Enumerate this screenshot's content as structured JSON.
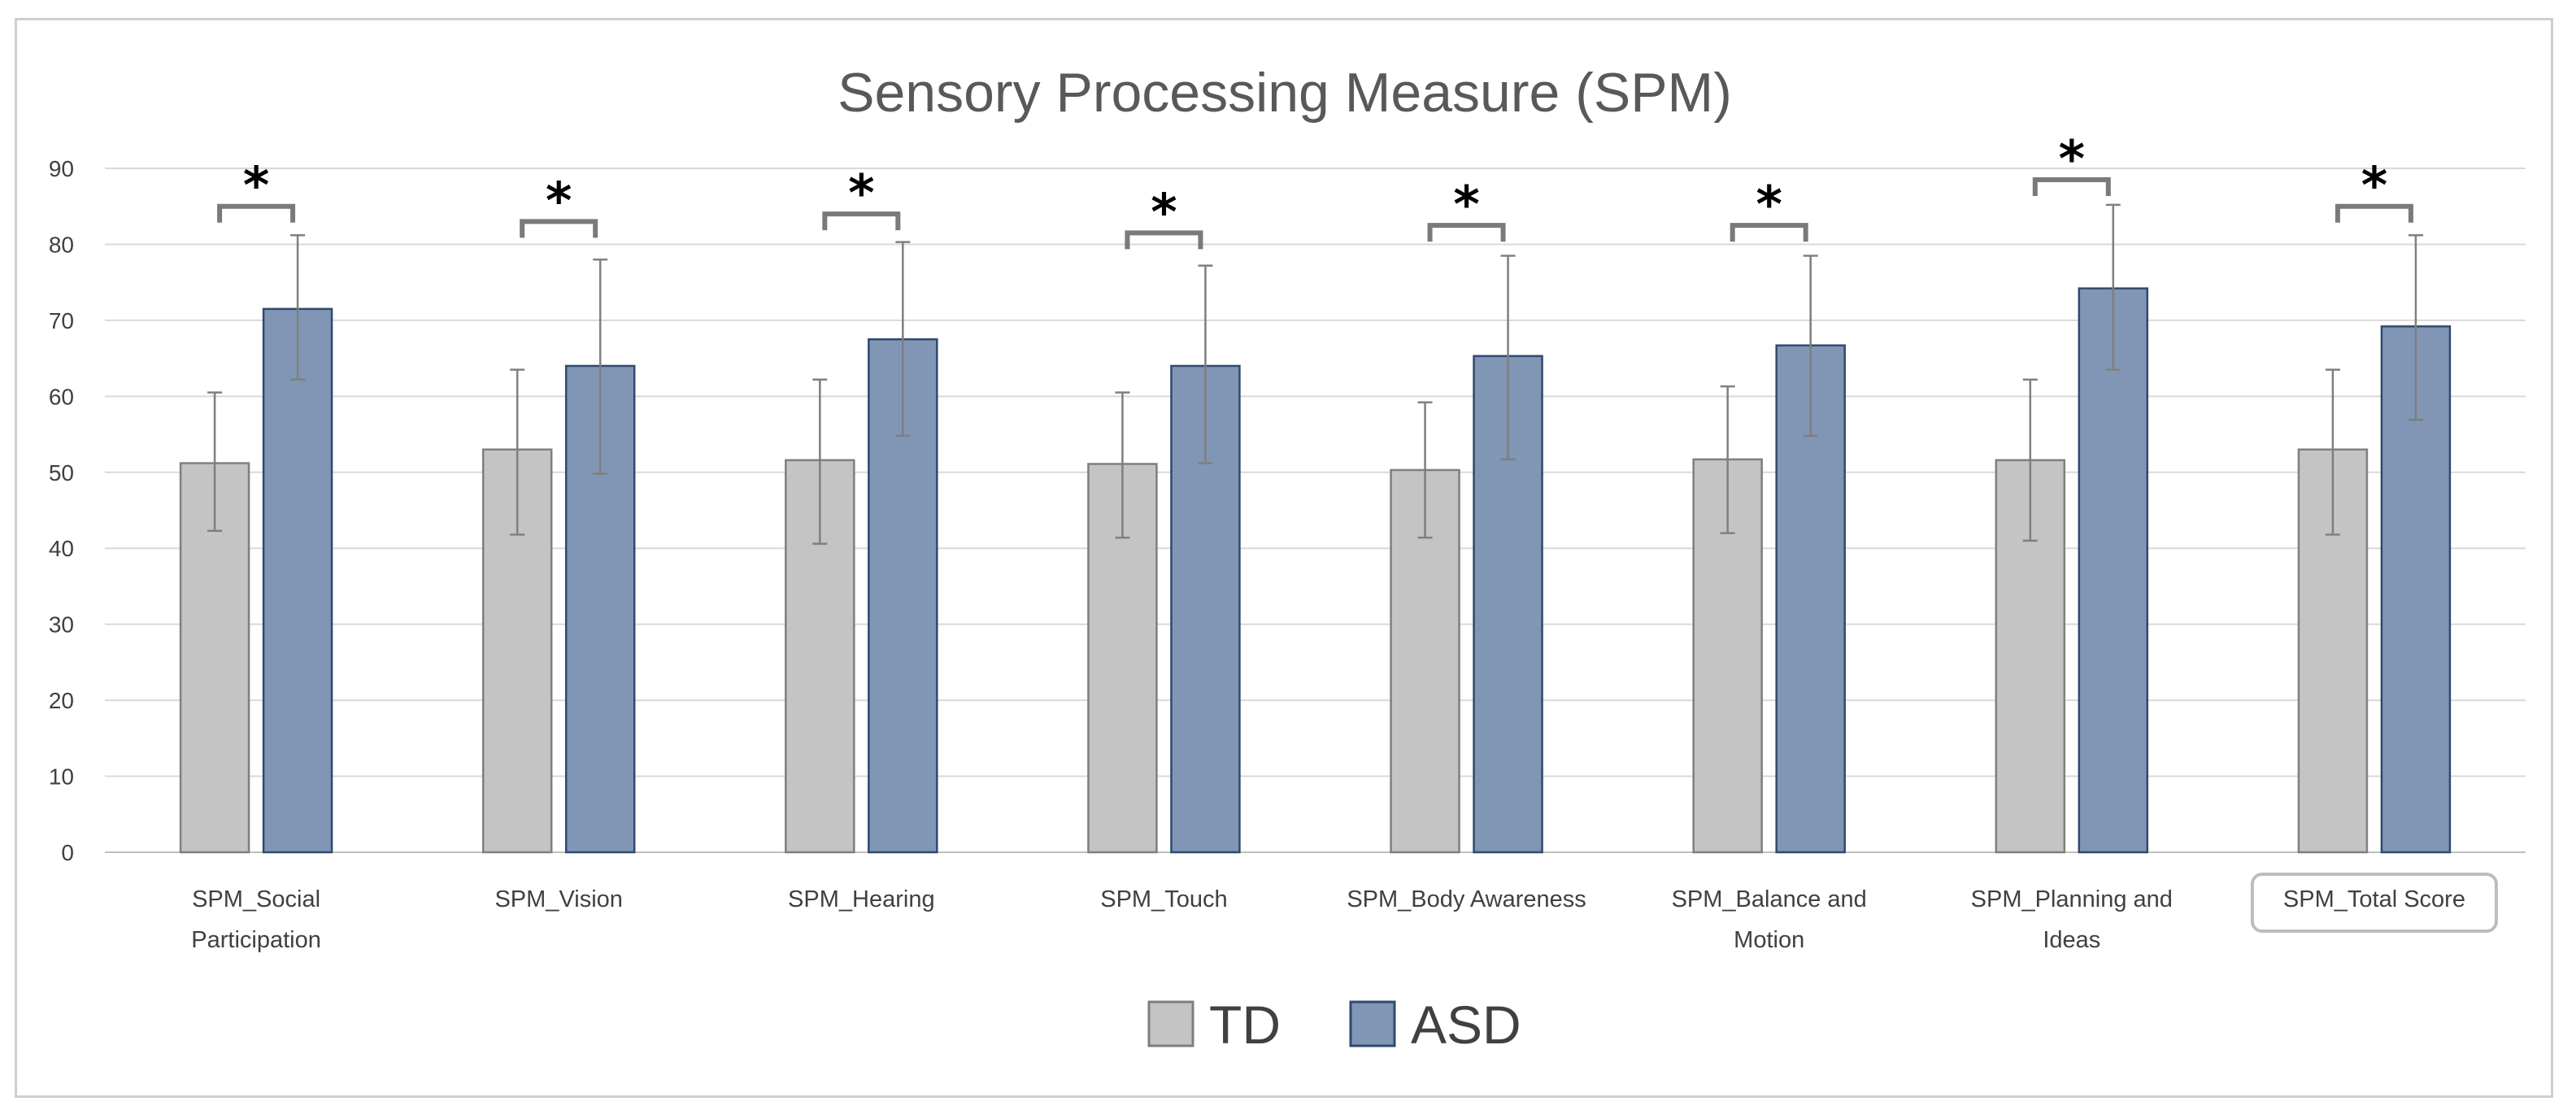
{
  "chart_data": {
    "type": "bar",
    "title": "Sensory Processing Measure (SPM)",
    "xlabel": "",
    "ylabel": "",
    "ylim": [
      0,
      90
    ],
    "yticks": [
      0,
      10,
      20,
      30,
      40,
      50,
      60,
      70,
      80,
      90
    ],
    "grid": true,
    "legend_position": "bottom",
    "categories": [
      [
        "SPM_Social",
        "Participation"
      ],
      [
        "SPM_Vision"
      ],
      [
        "SPM_Hearing"
      ],
      [
        "SPM_Touch"
      ],
      [
        "SPM_Body Awareness"
      ],
      [
        "SPM_Balance and",
        "Motion"
      ],
      [
        "SPM_Planning and",
        "Ideas"
      ],
      [
        "SPM_Total Score"
      ]
    ],
    "highlighted_category": 7,
    "series": [
      {
        "name": "TD",
        "color": "#c4c4c4",
        "values": [
          51.2,
          53.0,
          51.6,
          51.1,
          50.3,
          51.7,
          51.6,
          53.0
        ],
        "error_low": [
          42.3,
          41.8,
          40.6,
          41.4,
          41.4,
          42.0,
          41.0,
          41.8
        ],
        "error_high": [
          60.5,
          63.5,
          62.2,
          60.5,
          59.2,
          61.3,
          62.2,
          63.5
        ]
      },
      {
        "name": "ASD",
        "color": "#8096b4",
        "values": [
          71.5,
          64.0,
          67.5,
          64.0,
          65.3,
          66.7,
          74.2,
          69.2
        ],
        "error_low": [
          62.2,
          49.8,
          54.8,
          51.2,
          51.7,
          54.8,
          63.5,
          56.9
        ],
        "error_high": [
          81.2,
          78.0,
          80.3,
          77.2,
          78.5,
          78.5,
          85.2,
          81.2
        ]
      }
    ],
    "significance": [
      {
        "label": "*",
        "bracket_level": 85
      },
      {
        "label": "*",
        "bracket_level": 83
      },
      {
        "label": "*",
        "bracket_level": 84
      },
      {
        "label": "*",
        "bracket_level": 81.5
      },
      {
        "label": "*",
        "bracket_level": 82.5
      },
      {
        "label": "*",
        "bracket_level": 82.5
      },
      {
        "label": "*",
        "bracket_level": 88.5
      },
      {
        "label": "*",
        "bracket_level": 85
      }
    ]
  }
}
